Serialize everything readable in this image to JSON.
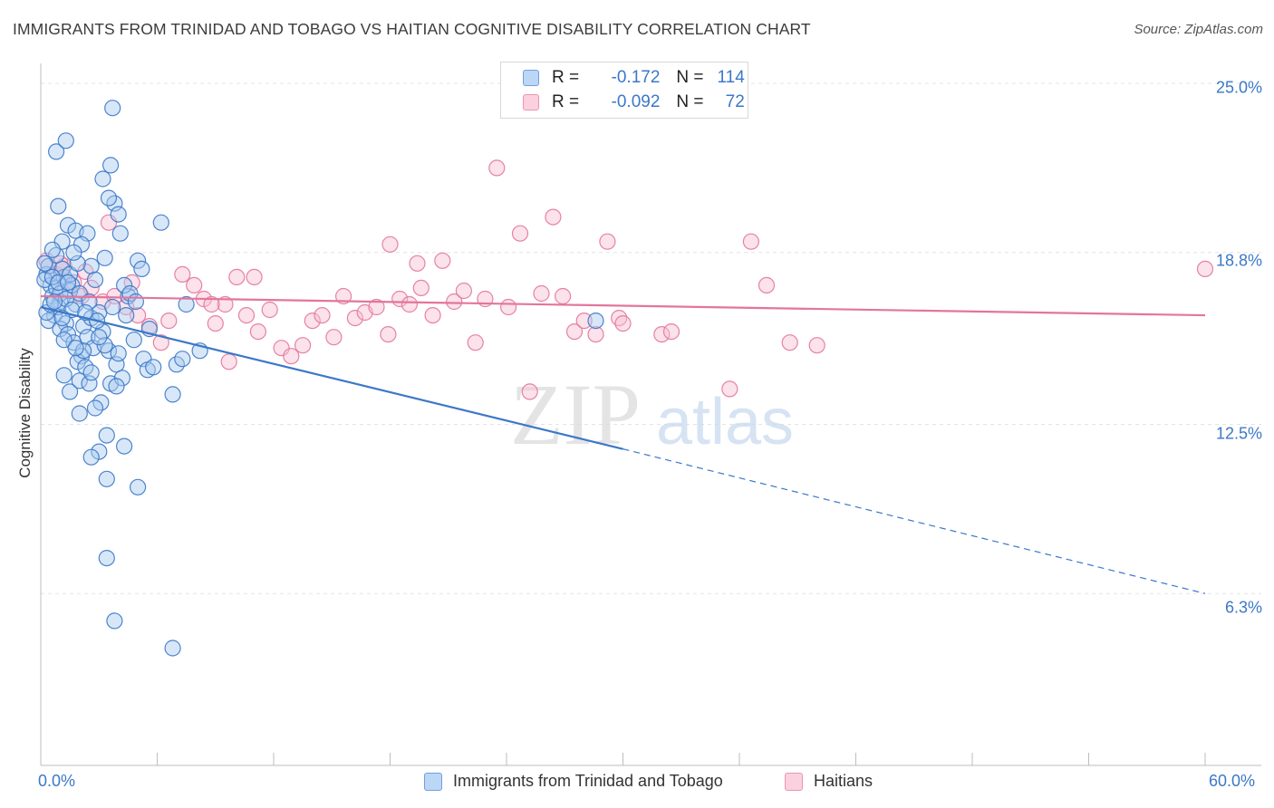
{
  "title": "IMMIGRANTS FROM TRINIDAD AND TOBAGO VS HAITIAN COGNITIVE DISABILITY CORRELATION CHART",
  "source": "Source: ZipAtlas.com",
  "watermark": {
    "zip": "ZIP",
    "atlas": "atlas"
  },
  "legend": {
    "r_label": "R =",
    "n_label": "N =",
    "rows": [
      {
        "r": "-0.172",
        "n": "114"
      },
      {
        "r": "-0.092",
        "n": "72"
      }
    ]
  },
  "chart_data": {
    "type": "scatter",
    "ylabel": "Cognitive Disability",
    "xlim": [
      0,
      60
    ],
    "ylim": [
      0,
      25.5
    ],
    "y_ticks": [
      25.0,
      18.8,
      12.5,
      6.3
    ],
    "y_tick_labels": [
      "25.0%",
      "18.8%",
      "12.5%",
      "6.3%"
    ],
    "x_tick_labels": [
      "0.0%",
      "60.0%"
    ],
    "x_ticks": [
      0,
      6,
      12,
      18,
      24,
      30,
      36,
      42,
      48,
      54,
      60
    ],
    "colors": {
      "blue": "#3b78c8",
      "pink": "#e3759c",
      "blue_fill": "#a9c9ef",
      "pink_fill": "#f7bfd2"
    },
    "series": [
      {
        "name": "Immigrants from Trinidad and Tobago",
        "color": "#3b78c8",
        "trend": {
          "x1": 0.0,
          "y1": 16.8,
          "x2": 30.0,
          "y2": 11.6,
          "dash_to_x": 60.0,
          "dash_to_y": 6.3
        },
        "points": [
          [
            0.3,
            18.0
          ],
          [
            0.5,
            17.6
          ],
          [
            0.4,
            18.3
          ],
          [
            0.6,
            17.2
          ],
          [
            0.8,
            17.5
          ],
          [
            1.0,
            17.0
          ],
          [
            0.2,
            17.8
          ],
          [
            0.7,
            16.5
          ],
          [
            1.2,
            17.9
          ],
          [
            1.5,
            17.4
          ],
          [
            0.9,
            16.8
          ],
          [
            1.1,
            18.2
          ],
          [
            1.3,
            16.2
          ],
          [
            1.6,
            17.6
          ],
          [
            1.8,
            16.9
          ],
          [
            2.0,
            17.3
          ],
          [
            2.2,
            16.1
          ],
          [
            0.4,
            16.3
          ],
          [
            1.0,
            16.0
          ],
          [
            1.4,
            15.8
          ],
          [
            1.7,
            15.5
          ],
          [
            2.1,
            15.0
          ],
          [
            2.4,
            15.7
          ],
          [
            2.6,
            16.4
          ],
          [
            1.9,
            14.8
          ],
          [
            2.3,
            14.6
          ],
          [
            2.7,
            15.3
          ],
          [
            3.0,
            16.6
          ],
          [
            3.2,
            15.9
          ],
          [
            3.5,
            15.2
          ],
          [
            1.2,
            14.3
          ],
          [
            1.5,
            13.7
          ],
          [
            2.0,
            14.1
          ],
          [
            2.5,
            14.0
          ],
          [
            3.1,
            13.3
          ],
          [
            2.8,
            13.1
          ],
          [
            3.4,
            12.1
          ],
          [
            3.6,
            14.0
          ],
          [
            3.9,
            14.7
          ],
          [
            4.2,
            14.2
          ],
          [
            1.4,
            19.8
          ],
          [
            1.8,
            19.6
          ],
          [
            2.4,
            19.5
          ],
          [
            1.1,
            19.2
          ],
          [
            0.8,
            18.7
          ],
          [
            2.6,
            18.3
          ],
          [
            3.3,
            18.6
          ],
          [
            3.8,
            20.6
          ],
          [
            4.5,
            17.2
          ],
          [
            4.3,
            17.6
          ],
          [
            4.6,
            17.3
          ],
          [
            4.9,
            17.0
          ],
          [
            3.2,
            21.5
          ],
          [
            3.6,
            22.0
          ],
          [
            0.8,
            22.5
          ],
          [
            3.7,
            24.1
          ],
          [
            3.5,
            20.8
          ],
          [
            4.1,
            19.5
          ],
          [
            5.0,
            18.5
          ],
          [
            5.3,
            14.9
          ],
          [
            5.5,
            14.5
          ],
          [
            6.8,
            13.6
          ],
          [
            5.8,
            14.6
          ],
          [
            7.0,
            14.7
          ],
          [
            7.3,
            14.9
          ],
          [
            3.0,
            11.5
          ],
          [
            2.6,
            11.3
          ],
          [
            4.3,
            11.7
          ],
          [
            3.4,
            10.5
          ],
          [
            5.0,
            10.2
          ],
          [
            3.4,
            7.6
          ],
          [
            3.8,
            5.3
          ],
          [
            6.8,
            4.3
          ],
          [
            0.6,
            17.9
          ],
          [
            1.0,
            17.3
          ],
          [
            1.5,
            18.0
          ],
          [
            0.3,
            16.6
          ],
          [
            0.5,
            16.9
          ],
          [
            1.3,
            17.1
          ],
          [
            2.9,
            16.3
          ],
          [
            3.3,
            15.4
          ],
          [
            2.2,
            15.2
          ],
          [
            1.6,
            16.7
          ],
          [
            0.9,
            17.7
          ],
          [
            2.5,
            17.0
          ],
          [
            4.0,
            15.1
          ],
          [
            1.2,
            15.6
          ],
          [
            3.7,
            16.8
          ],
          [
            4.4,
            16.5
          ],
          [
            5.6,
            16.0
          ],
          [
            0.6,
            18.9
          ],
          [
            1.9,
            18.4
          ],
          [
            2.1,
            19.1
          ],
          [
            1.7,
            18.8
          ],
          [
            0.2,
            18.4
          ],
          [
            1.4,
            17.7
          ],
          [
            2.8,
            17.8
          ],
          [
            0.7,
            17.0
          ],
          [
            1.1,
            16.4
          ],
          [
            2.3,
            16.6
          ],
          [
            3.0,
            15.7
          ],
          [
            1.8,
            15.3
          ],
          [
            2.6,
            14.4
          ],
          [
            3.9,
            13.9
          ],
          [
            4.8,
            15.6
          ],
          [
            5.2,
            18.2
          ],
          [
            6.2,
            19.9
          ],
          [
            7.5,
            16.9
          ],
          [
            8.2,
            15.2
          ],
          [
            28.6,
            16.3
          ],
          [
            1.3,
            22.9
          ],
          [
            4.0,
            20.2
          ],
          [
            0.9,
            20.5
          ],
          [
            2.0,
            12.9
          ]
        ]
      },
      {
        "name": "Haitians",
        "color": "#e3759c",
        "trend": {
          "x1": 0.0,
          "y1": 17.2,
          "x2": 60.0,
          "y2": 16.5
        },
        "points": [
          [
            0.3,
            18.5
          ],
          [
            0.8,
            18.0
          ],
          [
            1.2,
            18.3
          ],
          [
            1.7,
            17.7
          ],
          [
            2.1,
            17.2
          ],
          [
            2.6,
            17.5
          ],
          [
            3.2,
            17.0
          ],
          [
            3.8,
            17.2
          ],
          [
            4.4,
            16.8
          ],
          [
            5.0,
            16.5
          ],
          [
            5.6,
            16.1
          ],
          [
            6.2,
            15.5
          ],
          [
            6.6,
            16.3
          ],
          [
            7.3,
            18.0
          ],
          [
            7.9,
            17.6
          ],
          [
            8.4,
            17.1
          ],
          [
            9.0,
            16.2
          ],
          [
            9.5,
            16.9
          ],
          [
            10.1,
            17.9
          ],
          [
            10.6,
            16.5
          ],
          [
            11.2,
            15.9
          ],
          [
            11.8,
            16.7
          ],
          [
            12.4,
            15.3
          ],
          [
            12.9,
            15.0
          ],
          [
            13.5,
            15.4
          ],
          [
            14.0,
            16.3
          ],
          [
            14.5,
            16.5
          ],
          [
            15.1,
            15.7
          ],
          [
            15.6,
            17.2
          ],
          [
            16.2,
            16.4
          ],
          [
            16.7,
            16.6
          ],
          [
            17.3,
            16.8
          ],
          [
            17.9,
            15.8
          ],
          [
            18.5,
            17.1
          ],
          [
            19.0,
            16.9
          ],
          [
            19.6,
            17.5
          ],
          [
            20.2,
            16.5
          ],
          [
            20.7,
            18.5
          ],
          [
            21.3,
            17.0
          ],
          [
            21.8,
            17.4
          ],
          [
            22.4,
            15.5
          ],
          [
            22.9,
            17.1
          ],
          [
            23.5,
            21.9
          ],
          [
            24.1,
            16.8
          ],
          [
            24.7,
            19.5
          ],
          [
            25.2,
            13.7
          ],
          [
            25.8,
            17.3
          ],
          [
            26.4,
            20.1
          ],
          [
            26.9,
            17.2
          ],
          [
            27.5,
            15.9
          ],
          [
            28.0,
            16.3
          ],
          [
            28.6,
            15.8
          ],
          [
            29.2,
            19.2
          ],
          [
            29.8,
            16.4
          ],
          [
            30.0,
            16.2
          ],
          [
            32.0,
            15.8
          ],
          [
            32.5,
            15.9
          ],
          [
            35.5,
            13.8
          ],
          [
            36.6,
            19.2
          ],
          [
            37.4,
            17.6
          ],
          [
            38.6,
            15.5
          ],
          [
            40.0,
            15.4
          ],
          [
            60.0,
            18.2
          ],
          [
            1.0,
            18.4
          ],
          [
            2.3,
            18.1
          ],
          [
            3.5,
            19.9
          ],
          [
            4.7,
            17.7
          ],
          [
            18.0,
            19.1
          ],
          [
            19.4,
            18.4
          ],
          [
            11.0,
            17.9
          ],
          [
            8.8,
            16.9
          ],
          [
            9.7,
            14.8
          ]
        ]
      }
    ]
  }
}
